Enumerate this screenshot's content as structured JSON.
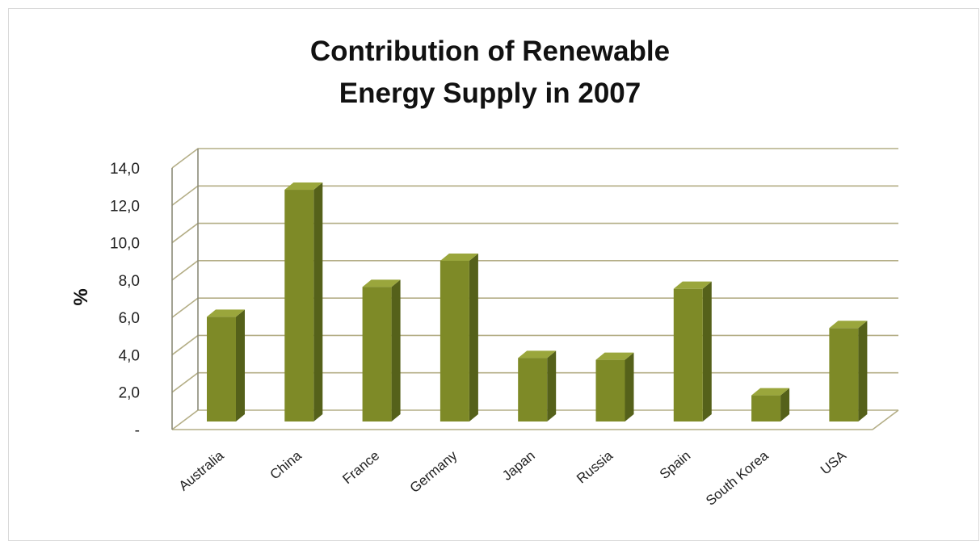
{
  "chart_data": {
    "type": "bar",
    "title_lines": [
      "Contribution of Renewable",
      "Energy Supply in 2007"
    ],
    "xlabel": "",
    "ylabel": "%",
    "categories": [
      "Australia",
      "China",
      "France",
      "Germany",
      "Japan",
      "Russia",
      "Spain",
      "South Korea",
      "USA"
    ],
    "values": [
      5.6,
      12.4,
      7.2,
      8.6,
      3.4,
      3.3,
      7.1,
      1.4,
      5.0
    ],
    "ylim": [
      0,
      14
    ],
    "yticks": [
      0,
      2,
      4,
      6,
      8,
      10,
      12,
      14
    ],
    "ytick_labels": [
      "-",
      "2,0",
      "4,0",
      "6,0",
      "8,0",
      "10,0",
      "12,0",
      "14,0"
    ],
    "grid": true,
    "legend": "none",
    "style": "3d-column",
    "colors": {
      "bar_front": "#7e8a27",
      "bar_side": "#55611a",
      "bar_top": "#9aa63c",
      "grid": "#b4ae86",
      "wall": "#8a8a78"
    }
  }
}
